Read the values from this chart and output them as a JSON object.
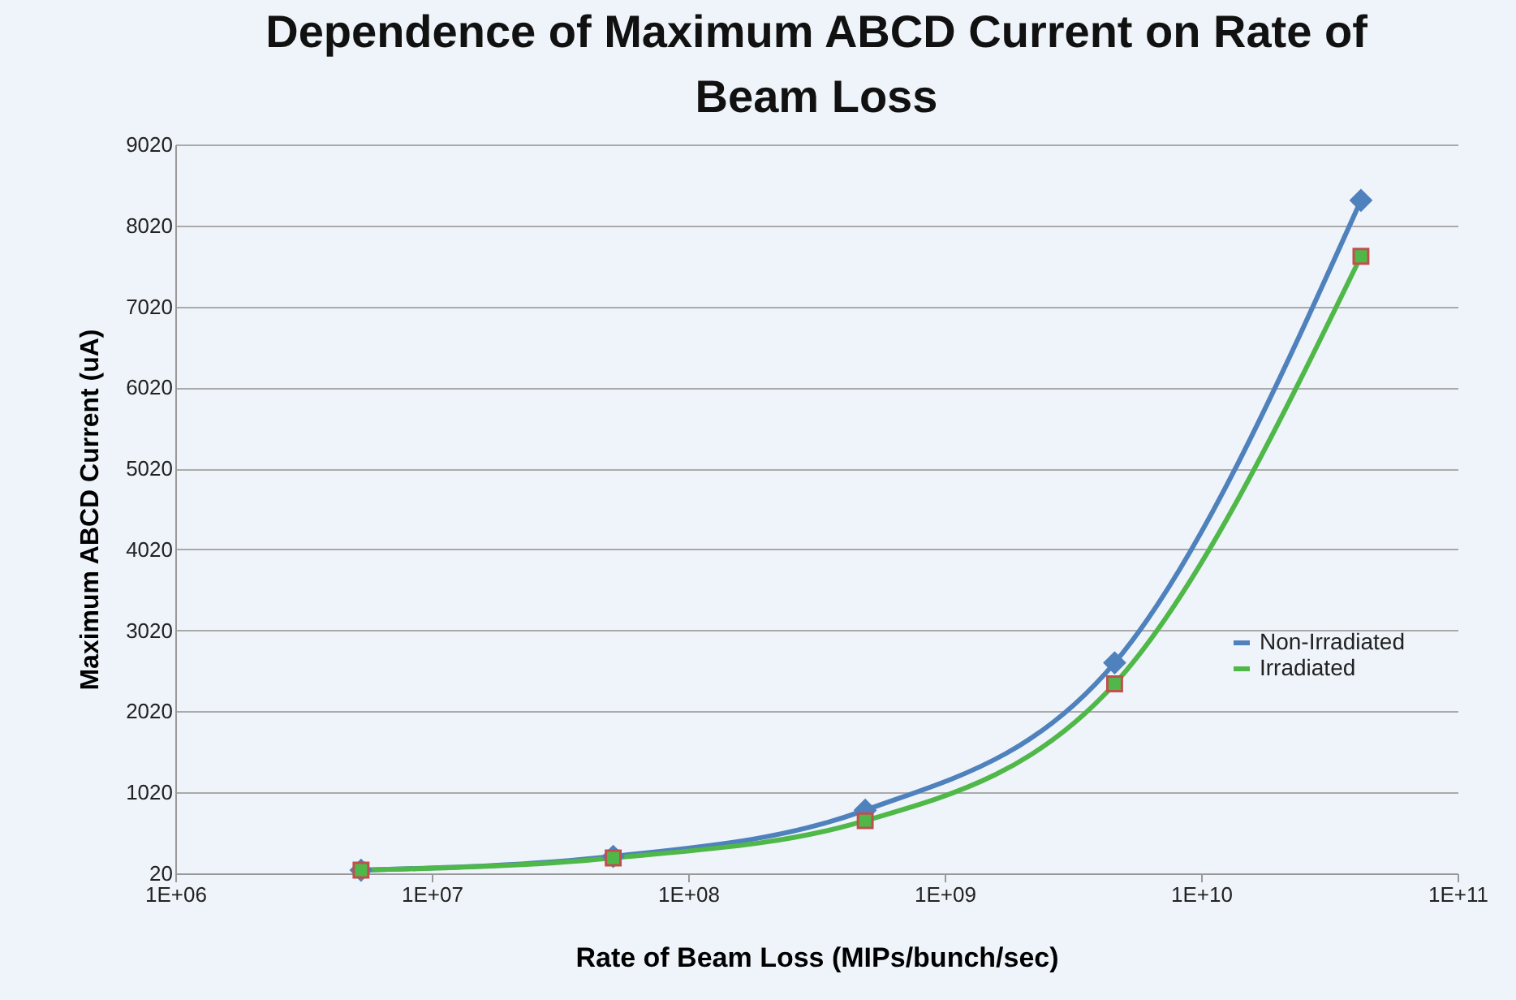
{
  "chart_data": {
    "type": "line",
    "title": "Dependence of Maximum ABCD Current on Rate of Beam Loss",
    "xlabel": "Rate of Beam Loss (MIPs/bunch/sec)",
    "ylabel": "Maximum ABCD Current (uA)",
    "log": "x",
    "grid": "y",
    "legend": "right",
    "x": [
      5300000,
      51000000,
      490000000,
      4600000000,
      42000000000
    ],
    "xlim": [
      1000000,
      100000000000
    ],
    "xticks": [
      {
        "value": 1000000,
        "label": "1E+06"
      },
      {
        "value": 10000000,
        "label": "1E+07"
      },
      {
        "value": 100000000,
        "label": "1E+08"
      },
      {
        "value": 1000000000,
        "label": "1E+09"
      },
      {
        "value": 10000000000,
        "label": "1E+10"
      },
      {
        "value": 100000000000,
        "label": "1E+11"
      }
    ],
    "ylim": [
      20,
      9020
    ],
    "yticks": [
      20,
      1020,
      2020,
      3020,
      4020,
      5020,
      6020,
      7020,
      8020,
      9020
    ],
    "series": [
      {
        "name": "Non-Irradiated",
        "color": "#4f81bd",
        "marker": "diamond",
        "values": [
          60,
          230,
          800,
          2620,
          8330
        ]
      },
      {
        "name": "Irradiated",
        "color": "#4fb848",
        "marker": "square",
        "values": [
          60,
          210,
          670,
          2360,
          7640
        ]
      }
    ]
  }
}
